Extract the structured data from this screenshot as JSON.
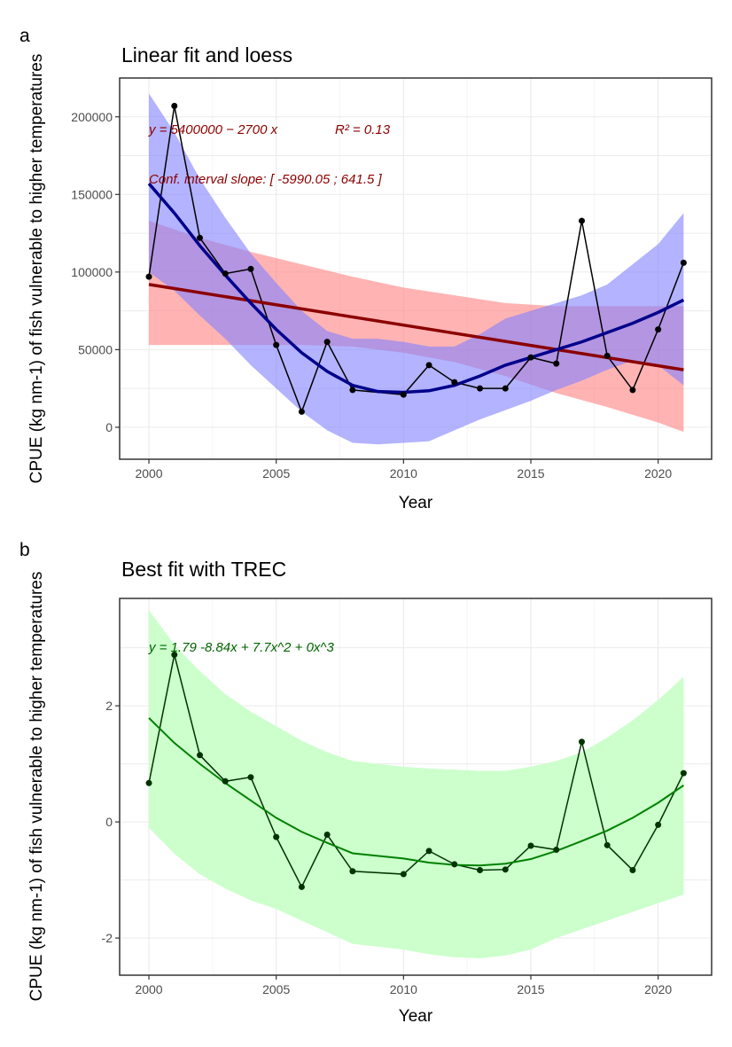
{
  "chart_data": [
    {
      "type": "line",
      "tag": "a",
      "title": "Linear fit and loess",
      "xlabel": "Year",
      "ylabel": "CPUE (kg nm-1) of fish vulnerable to higher temperatures",
      "xlim": [
        1998.85,
        2022.1
      ],
      "ylim": [
        -20600,
        225000
      ],
      "xticks": [
        2000,
        2005,
        2010,
        2015,
        2020
      ],
      "yticks": [
        0,
        50000,
        100000,
        150000,
        200000
      ],
      "grid": true,
      "annotations": [
        "y = 5400000 − 2700 x",
        "R² = 0.13",
        "Conf. interval slope:  [ -5990.05 ; 641.5 ]"
      ],
      "colors": {
        "observed": "#000000",
        "linear": "#8b0000",
        "linear_ci": "#ff8080",
        "loess": "#00008b",
        "loess_ci": "#8080ff",
        "annotation": "#8b0000"
      },
      "observed": {
        "x": [
          2000,
          2001,
          2002,
          2003,
          2004,
          2005,
          2006,
          2007,
          2008,
          2010,
          2011,
          2012,
          2013,
          2014,
          2015,
          2016,
          2017,
          2018,
          2019,
          2020,
          2021
        ],
        "y": [
          97000,
          207000,
          122000,
          99000,
          102000,
          53000,
          10000,
          55000,
          24000,
          21000,
          40000,
          29000,
          25000,
          25000,
          45000,
          41000,
          133000,
          46000,
          24000,
          63000,
          106000
        ]
      },
      "linear_fit": {
        "x": [
          2000,
          2021
        ],
        "y": [
          92000,
          37000
        ]
      },
      "linear_ci": {
        "x": [
          2000,
          2002,
          2004,
          2006,
          2008,
          2010,
          2012,
          2014,
          2016,
          2018,
          2020,
          2021
        ],
        "upper": [
          133000,
          122000,
          113000,
          105000,
          97000,
          90000,
          85000,
          80000,
          78000,
          78000,
          78000,
          78000
        ],
        "lower": [
          53000,
          53000,
          53000,
          53000,
          52000,
          48000,
          42000,
          33000,
          22000,
          13000,
          3000,
          -3000
        ]
      },
      "loess_fit": {
        "x": [
          2000,
          2001,
          2002,
          2003,
          2004,
          2005,
          2006,
          2007,
          2008,
          2009,
          2010,
          2011,
          2012,
          2013,
          2014,
          2015,
          2016,
          2017,
          2018,
          2019,
          2020,
          2021
        ],
        "y": [
          157000,
          138000,
          117000,
          98000,
          80000,
          63000,
          48000,
          36000,
          27000,
          23000,
          22500,
          23500,
          27000,
          33000,
          40000,
          45000,
          50000,
          55000,
          61000,
          67000,
          74000,
          82000
        ],
        "upper": [
          215000,
          190000,
          160000,
          135000,
          112000,
          93000,
          75000,
          62000,
          57000,
          57000,
          55000,
          52000,
          52000,
          60000,
          70000,
          75000,
          80000,
          85000,
          92000,
          105000,
          118000,
          138000
        ],
        "lower": [
          100000,
          88000,
          72000,
          57000,
          40000,
          25000,
          10000,
          -2000,
          -10000,
          -11000,
          -10000,
          -9000,
          -2000,
          5000,
          11000,
          17000,
          24000,
          30000,
          37000,
          43000,
          40000,
          27000
        ]
      }
    },
    {
      "type": "line",
      "tag": "b",
      "title": "Best fit with TREC",
      "xlabel": "Year",
      "ylabel": "CPUE (kg nm-1) of fish vulnerable to higher temperatures",
      "xlim": [
        1998.85,
        2022.1
      ],
      "ylim": [
        -2.64,
        3.85
      ],
      "xticks": [
        2000,
        2005,
        2010,
        2015,
        2020
      ],
      "yticks": [
        -2,
        0,
        2
      ],
      "grid": true,
      "annotations": [
        "y =  1.79   -8.84x  + 7.7x^2  + 0x^3"
      ],
      "colors": {
        "observed": "#003300",
        "fit": "#008000",
        "ci": "#ccffcc",
        "annotation": "#006400"
      },
      "observed": {
        "x": [
          2000,
          2001,
          2002,
          2003,
          2004,
          2005,
          2006,
          2007,
          2008,
          2010,
          2011,
          2012,
          2013,
          2014,
          2015,
          2016,
          2017,
          2018,
          2019,
          2020,
          2021
        ],
        "y": [
          0.67,
          2.88,
          1.15,
          0.7,
          0.77,
          -0.26,
          -1.12,
          -0.22,
          -0.85,
          -0.9,
          -0.5,
          -0.73,
          -0.83,
          -0.82,
          -0.41,
          -0.48,
          1.38,
          -0.4,
          -0.83,
          -0.05,
          0.84
        ]
      },
      "fit": {
        "x": [
          2000,
          2001,
          2002,
          2003,
          2004,
          2005,
          2006,
          2007,
          2008,
          2010,
          2011,
          2012,
          2013,
          2014,
          2015,
          2016,
          2017,
          2018,
          2019,
          2020,
          2021
        ],
        "y": [
          1.79,
          1.36,
          1.0,
          0.67,
          0.37,
          0.07,
          -0.17,
          -0.36,
          -0.54,
          -0.63,
          -0.7,
          -0.74,
          -0.75,
          -0.72,
          -0.64,
          -0.5,
          -0.33,
          -0.15,
          0.07,
          0.33,
          0.63
        ],
        "upper": [
          3.65,
          3.05,
          2.6,
          2.2,
          1.9,
          1.65,
          1.4,
          1.2,
          1.05,
          0.95,
          0.92,
          0.9,
          0.88,
          0.88,
          0.95,
          1.05,
          1.2,
          1.45,
          1.75,
          2.1,
          2.5
        ],
        "lower": [
          -0.1,
          -0.55,
          -0.9,
          -1.15,
          -1.35,
          -1.5,
          -1.7,
          -1.9,
          -2.1,
          -2.2,
          -2.28,
          -2.33,
          -2.35,
          -2.3,
          -2.2,
          -2.0,
          -1.85,
          -1.7,
          -1.55,
          -1.4,
          -1.25
        ]
      }
    }
  ]
}
